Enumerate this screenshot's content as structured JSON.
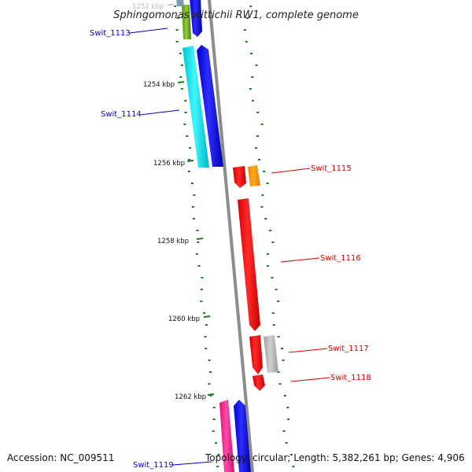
{
  "title": "Sphingomonas wittichii RW1, complete genome",
  "footer": {
    "accession": "Accession: NC_009511",
    "topology": "Topology: circular; Length: 5,382,261 bp; Genes: 4,906"
  },
  "scale": {
    "ticks": [
      "1252 kbp",
      "1254 kbp",
      "1256 kbp",
      "1258 kbp",
      "1260 kbp",
      "1262 kbp"
    ]
  },
  "genes": [
    {
      "name": "Swit_1113",
      "strand": "forward",
      "color": "#0000ee"
    },
    {
      "name": "Swit_1114",
      "strand": "forward",
      "color": "#0000ee"
    },
    {
      "name": "Swit_1115",
      "strand": "reverse",
      "color": "#cc0000"
    },
    {
      "name": "Swit_1116",
      "strand": "reverse",
      "color": "#cc0000"
    },
    {
      "name": "Swit_1117",
      "strand": "reverse",
      "color": "#cc0000"
    },
    {
      "name": "Swit_1118",
      "strand": "reverse",
      "color": "#cc0000"
    },
    {
      "name": "Swit_1119",
      "strand": "forward",
      "color": "#0000ee"
    }
  ],
  "colors": {
    "forward_cds": "#0000ff",
    "reverse_cds": "#ff0000",
    "cyan_feature": "#00e5ee",
    "orange_feature": "#ff9900",
    "gray_feature": "#b4b4b4",
    "pink_feature": "#ff1493",
    "green_feature": "#5a9a2a",
    "backbone": "#8c8c8c",
    "gc_dots": "#1f7a1f"
  }
}
